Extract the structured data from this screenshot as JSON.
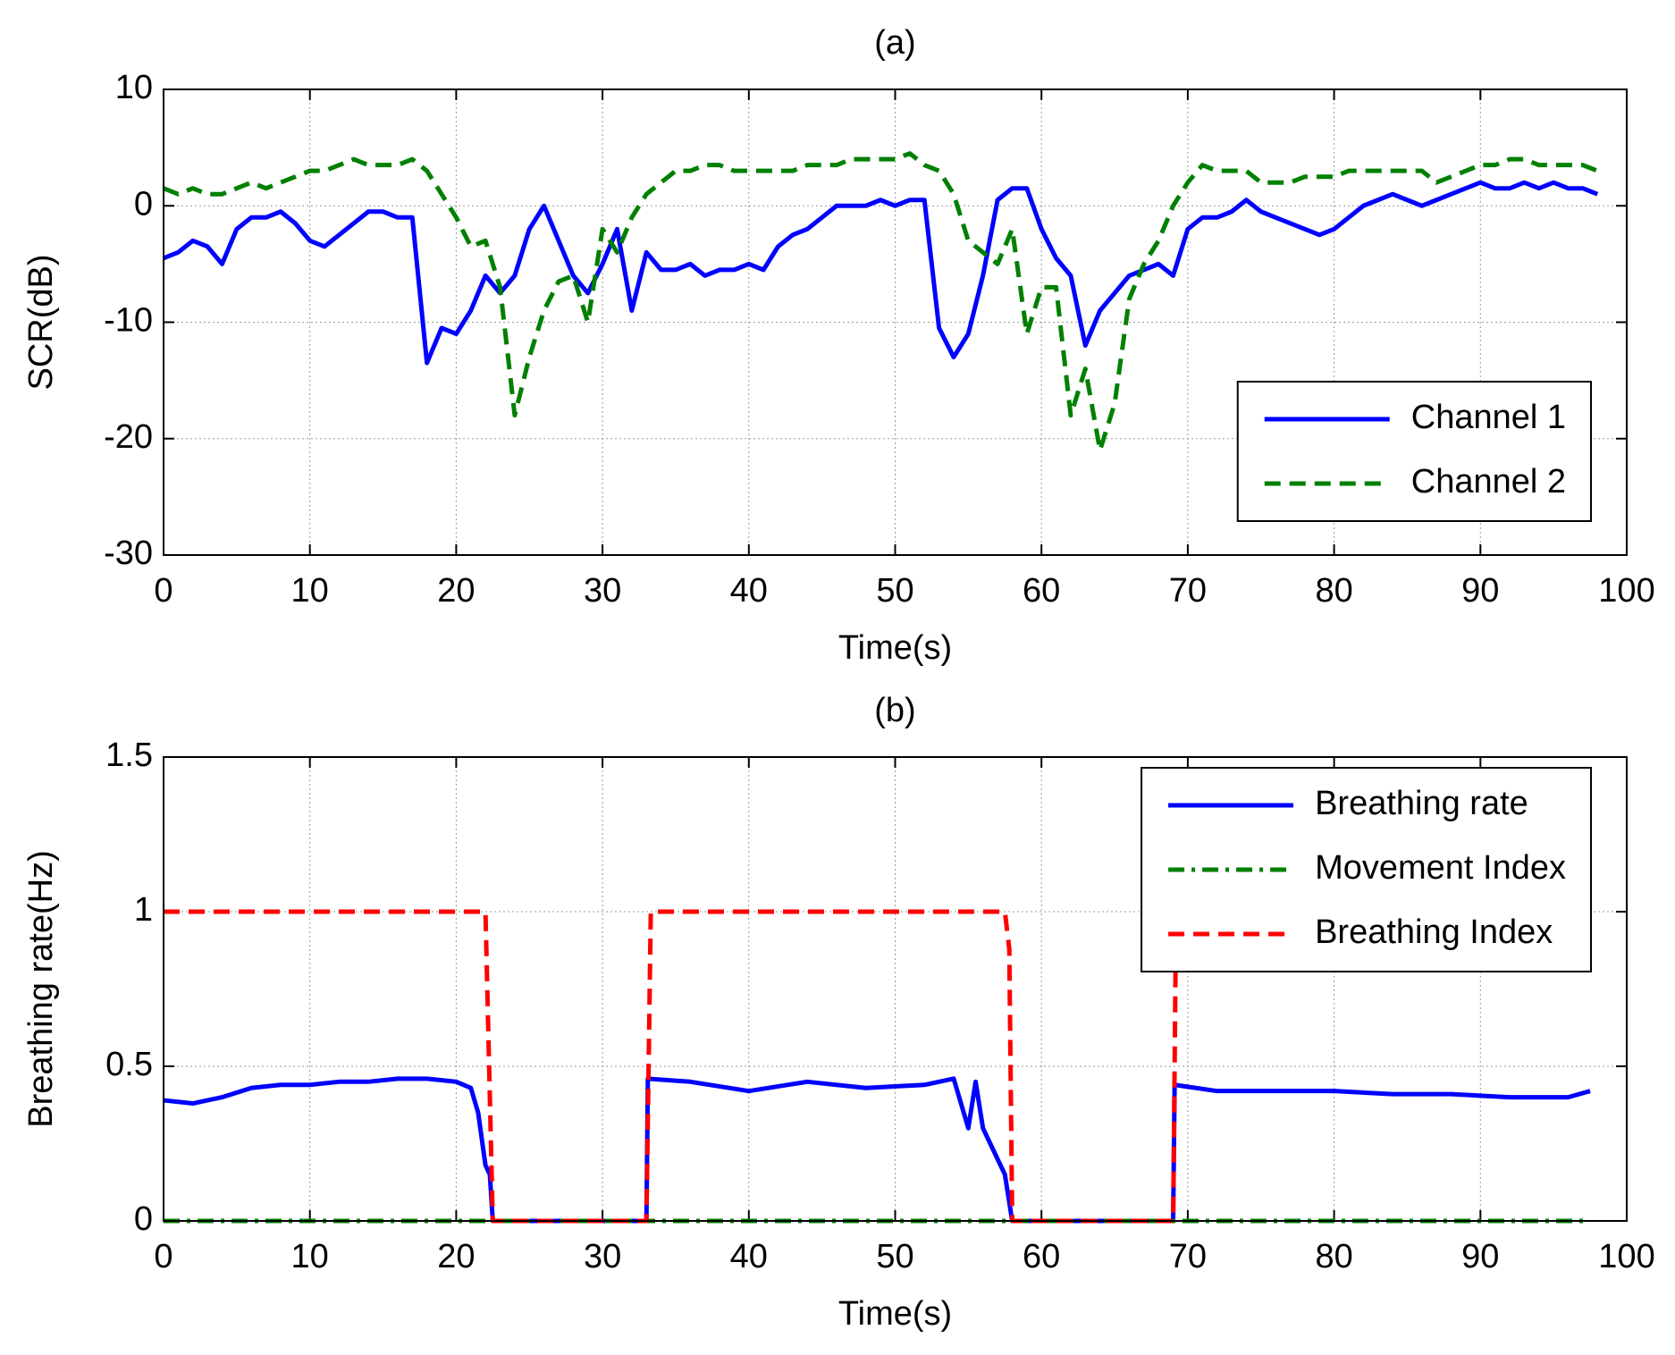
{
  "chart_data": [
    {
      "type": "line",
      "title": "(a)",
      "xlabel": "Time(s)",
      "ylabel": "SCR(dB)",
      "xlim": [
        0,
        100
      ],
      "ylim": [
        -30,
        10
      ],
      "xticks": [
        0,
        10,
        20,
        30,
        40,
        50,
        60,
        70,
        80,
        90,
        100
      ],
      "yticks": [
        -30,
        -20,
        -10,
        0,
        10
      ],
      "grid": true,
      "legend": "lower right",
      "x": [
        0,
        1,
        2,
        3,
        4,
        5,
        6,
        7,
        8,
        9,
        10,
        11,
        12,
        13,
        14,
        15,
        16,
        17,
        18,
        19,
        20,
        21,
        22,
        23,
        24,
        25,
        26,
        27,
        28,
        29,
        30,
        31,
        32,
        33,
        34,
        35,
        36,
        37,
        38,
        39,
        40,
        41,
        42,
        43,
        44,
        45,
        46,
        47,
        48,
        49,
        50,
        51,
        52,
        53,
        54,
        55,
        56,
        57,
        58,
        59,
        60,
        61,
        62,
        63,
        64,
        65,
        66,
        67,
        68,
        69,
        70,
        71,
        72,
        73,
        74,
        75,
        76,
        77,
        78,
        79,
        80,
        81,
        82,
        83,
        84,
        85,
        86,
        87,
        88,
        89,
        90,
        91,
        92,
        93,
        94,
        95,
        96,
        97,
        98
      ],
      "series": [
        {
          "name": "Channel 1",
          "color": "#0000ff",
          "style": "solid",
          "values": [
            -4.5,
            -4,
            -3,
            -3.5,
            -5,
            -2,
            -1,
            -1,
            -0.5,
            -1.5,
            -3,
            -3.5,
            -2.5,
            -1.5,
            -0.5,
            -0.5,
            -1,
            -1,
            -13.5,
            -10.5,
            -11,
            -9,
            -6,
            -7.5,
            -6,
            -2,
            0,
            -3,
            -6,
            -7.5,
            -5,
            -2,
            -9,
            -4,
            -5.5,
            -5.5,
            -5,
            -6,
            -5.5,
            -5.5,
            -5,
            -5.5,
            -3.5,
            -2.5,
            -2,
            -1,
            0,
            0,
            0,
            0.5,
            0,
            0.5,
            0.5,
            -10.5,
            -13,
            -11,
            -6,
            0.5,
            1.5,
            1.5,
            -2,
            -4.5,
            -6,
            -12,
            -9,
            -7.5,
            -6,
            -5.5,
            -5,
            -6,
            -2,
            -1,
            -1,
            -0.5,
            0.5,
            -0.5,
            -1,
            -1.5,
            -2,
            -2.5,
            -2,
            -1,
            0,
            0.5,
            1,
            0.5,
            0,
            0.5,
            1,
            1.5,
            2,
            1.5,
            1.5,
            2,
            1.5,
            2,
            1.5,
            1.5,
            1
          ]
        },
        {
          "name": "Channel 2",
          "color": "#008000",
          "style": "dashed",
          "values": [
            1.5,
            1,
            1.5,
            1,
            1,
            1.5,
            2,
            1.5,
            2,
            2.5,
            3,
            3,
            3.5,
            4,
            3.5,
            3.5,
            3.5,
            4,
            3,
            1,
            -1,
            -3.5,
            -3,
            -7,
            -18,
            -13,
            -9,
            -6.5,
            -6,
            -10,
            -2,
            -4,
            -1,
            1,
            2,
            3,
            3,
            3.5,
            3.5,
            3,
            3,
            3,
            3,
            3,
            3.5,
            3.5,
            3.5,
            4,
            4,
            4,
            4,
            4.5,
            3.5,
            3,
            1,
            -3,
            -4,
            -5,
            -2,
            -11,
            -7,
            -7,
            -18,
            -14,
            -21,
            -17,
            -8,
            -5,
            -3,
            0,
            2,
            3.5,
            3,
            3,
            3,
            2,
            2,
            2,
            2.5,
            2.5,
            2.5,
            3,
            3,
            3,
            3,
            3,
            3,
            2,
            2.5,
            3,
            3.5,
            3.5,
            4,
            4,
            3.5,
            3.5,
            3.5,
            3.5,
            3
          ]
        }
      ]
    },
    {
      "type": "line",
      "title": "(b)",
      "xlabel": "Time(s)",
      "ylabel": "Breathing rate(Hz)",
      "xlim": [
        0,
        100
      ],
      "ylim": [
        0,
        1.5
      ],
      "xticks": [
        0,
        10,
        20,
        30,
        40,
        50,
        60,
        70,
        80,
        90,
        100
      ],
      "yticks": [
        0,
        0.5,
        1,
        1.5
      ],
      "grid": true,
      "legend": "upper right",
      "series": [
        {
          "name": "Breathing rate",
          "color": "#0000ff",
          "style": "solid",
          "x": [
            0,
            2,
            4,
            6,
            8,
            10,
            12,
            14,
            16,
            18,
            20,
            21,
            21.5,
            22,
            22.3,
            22.5,
            33,
            33.1,
            36,
            40,
            44,
            48,
            52,
            54,
            55,
            55.5,
            56,
            57,
            57.5,
            58,
            69,
            69.1,
            72,
            76,
            80,
            84,
            88,
            92,
            96,
            97.5
          ],
          "values": [
            0.39,
            0.38,
            0.4,
            0.43,
            0.44,
            0.44,
            0.45,
            0.45,
            0.46,
            0.46,
            0.45,
            0.43,
            0.35,
            0.18,
            0.15,
            0,
            0,
            0.46,
            0.45,
            0.42,
            0.45,
            0.43,
            0.44,
            0.46,
            0.3,
            0.45,
            0.3,
            0.2,
            0.15,
            0,
            0,
            0.44,
            0.42,
            0.42,
            0.42,
            0.41,
            0.41,
            0.4,
            0.4,
            0.42
          ]
        },
        {
          "name": "Movement Index",
          "color": "#008000",
          "style": "dashdot",
          "x": [
            0,
            97.5
          ],
          "values": [
            0,
            0
          ]
        },
        {
          "name": "Breathing Index",
          "color": "#ff0000",
          "style": "dashed",
          "x": [
            0,
            22,
            22.5,
            33,
            33.3,
            57.5,
            57.8,
            58,
            69,
            69.2
          ],
          "values": [
            1,
            1,
            0,
            0,
            1,
            1,
            0.88,
            0,
            0,
            1
          ]
        }
      ]
    }
  ]
}
